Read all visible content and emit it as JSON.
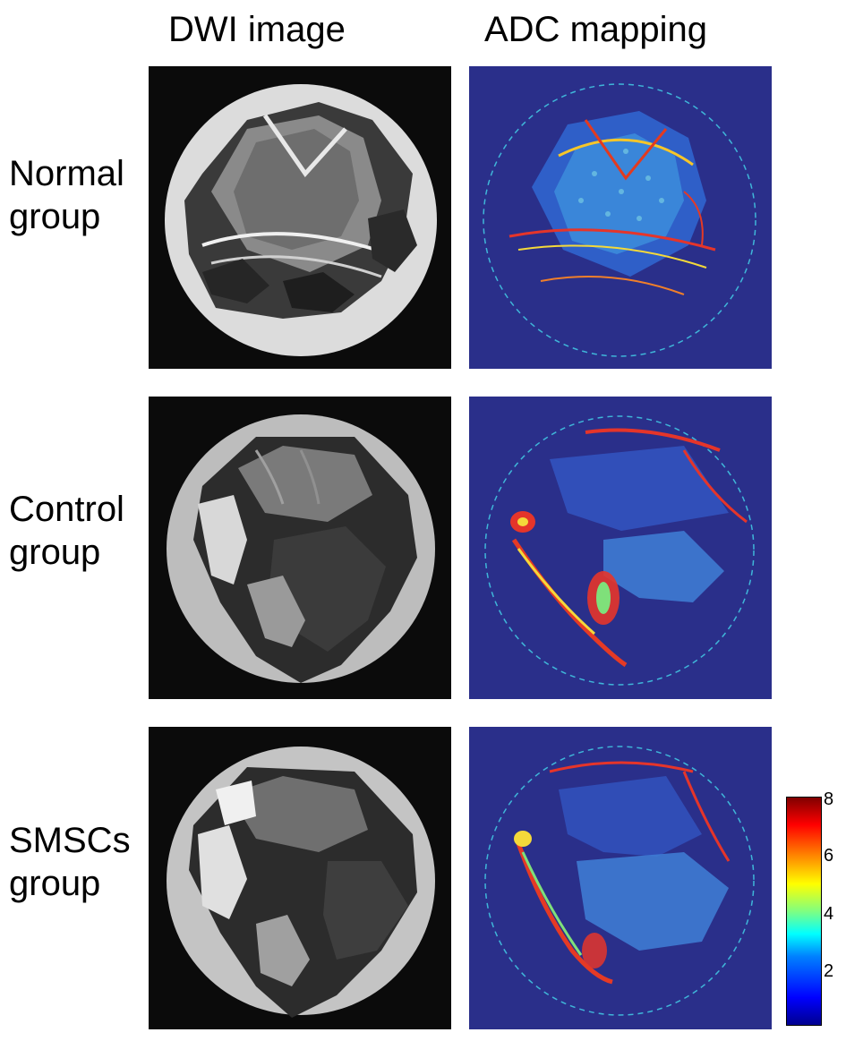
{
  "columns": {
    "dwi": "DWI image",
    "adc": "ADC mapping"
  },
  "rows": [
    {
      "line1": "Normal",
      "line2": "group"
    },
    {
      "line1": "Control",
      "line2": "group"
    },
    {
      "line1": "SMSCs",
      "line2": "group"
    }
  ],
  "colorbar": {
    "ticks": [
      "8",
      "6",
      "4",
      "2"
    ],
    "colormap": "jet"
  },
  "colors": {
    "adc_background": "#2a2f8a",
    "dwi_background": "#0b0b0b"
  }
}
